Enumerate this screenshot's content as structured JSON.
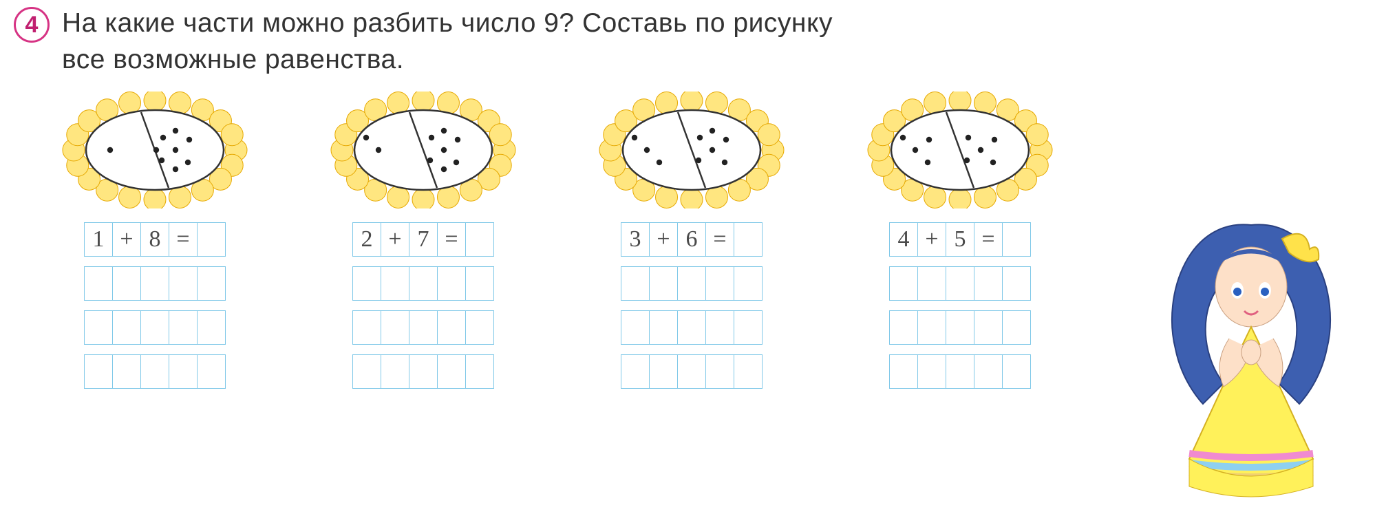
{
  "problem_number": "4",
  "question_line1": "На какие части можно разбить число 9? Составь по рисунку",
  "question_line2": "все возможные равенства.",
  "columns": [
    {
      "flower": {
        "left_dots": 1,
        "right_dots": 8
      },
      "expr": [
        "1",
        "+",
        "8",
        "=",
        " "
      ],
      "petal_fill": "#ffe680",
      "petal_stroke": "#e6a800"
    },
    {
      "flower": {
        "left_dots": 2,
        "right_dots": 7
      },
      "expr": [
        "2",
        "+",
        "7",
        "=",
        " "
      ],
      "petal_fill": "#ffe680",
      "petal_stroke": "#e6a800"
    },
    {
      "flower": {
        "left_dots": 3,
        "right_dots": 6
      },
      "expr": [
        "3",
        "+",
        "6",
        "=",
        " "
      ],
      "petal_fill": "#ffe680",
      "petal_stroke": "#e6a800"
    },
    {
      "flower": {
        "left_dots": 4,
        "right_dots": 5
      },
      "expr": [
        "4",
        "+",
        "5",
        "=",
        " "
      ],
      "petal_fill": "#ffe680",
      "petal_stroke": "#e6a800"
    }
  ],
  "blank_rows_per_column": 3,
  "cells_per_row": 5,
  "grid_cell_border_color": "#7fc8e8",
  "handwriting_color": "#4a4a4a",
  "dot_color": "#222222",
  "ellipse_fill": "#ffffff",
  "ellipse_stroke": "#333333",
  "doll": {
    "hair_color": "#3d5fb0",
    "bow_color": "#ffe24a",
    "dress_main": "#fff15a",
    "dress_trim_colors": [
      "#f08bd0",
      "#8ed0f0",
      "#f0d070",
      "#b0e090"
    ],
    "skin_color": "#fde0c8",
    "eye_color": "#2a60c0",
    "lip_color": "#e06080"
  }
}
